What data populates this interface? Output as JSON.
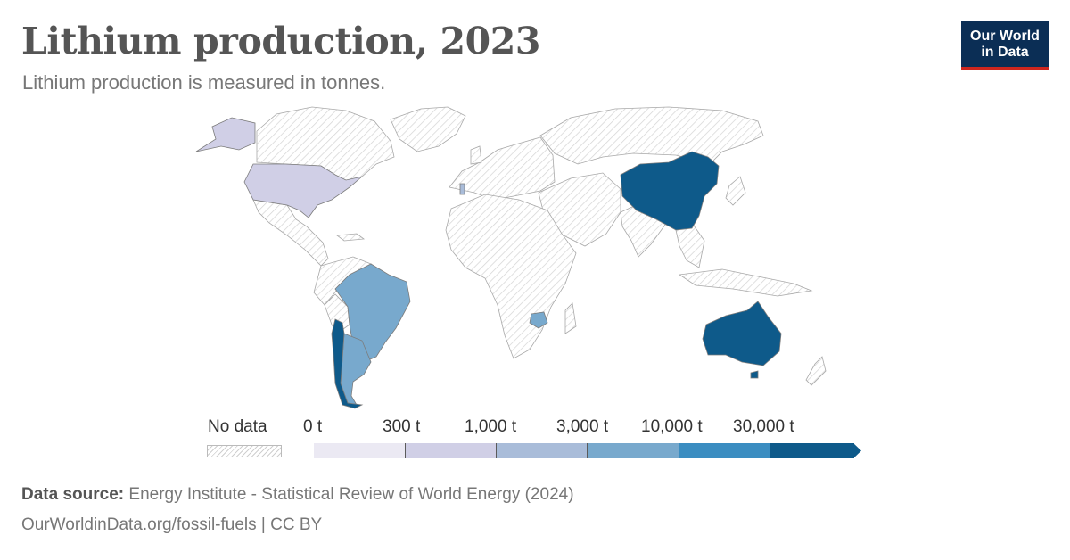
{
  "title": "Lithium production, 2023",
  "subtitle": "Lithium production is measured in tonnes.",
  "logo": {
    "line1": "Our World",
    "line2": "in Data"
  },
  "colors": {
    "no_data_hatch": "#d0d0d0",
    "bins": [
      "#ebe9f3",
      "#d0cfe6",
      "#a9bcd9",
      "#78a9cd",
      "#3b8dc1",
      "#0e5a8a"
    ],
    "country_stroke": "#9a9a9a"
  },
  "legend": {
    "no_data_label": "No data",
    "ticks": [
      "0 t",
      "300 t",
      "1,000 t",
      "3,000 t",
      "10,000 t",
      "30,000 t"
    ]
  },
  "countries": [
    {
      "name": "United States",
      "bin": 1
    },
    {
      "name": "Brazil",
      "bin": 3
    },
    {
      "name": "Argentina",
      "bin": 3
    },
    {
      "name": "Chile",
      "bin": 5
    },
    {
      "name": "Zimbabwe",
      "bin": 3
    },
    {
      "name": "China",
      "bin": 5
    },
    {
      "name": "Australia",
      "bin": 5
    },
    {
      "name": "Portugal",
      "bin": 2
    }
  ],
  "footer": {
    "source_label": "Data source:",
    "source_text": "Energy Institute - Statistical Review of World Energy (2024)",
    "url_text": "OurWorldinData.org/fossil-fuels | CC BY"
  }
}
